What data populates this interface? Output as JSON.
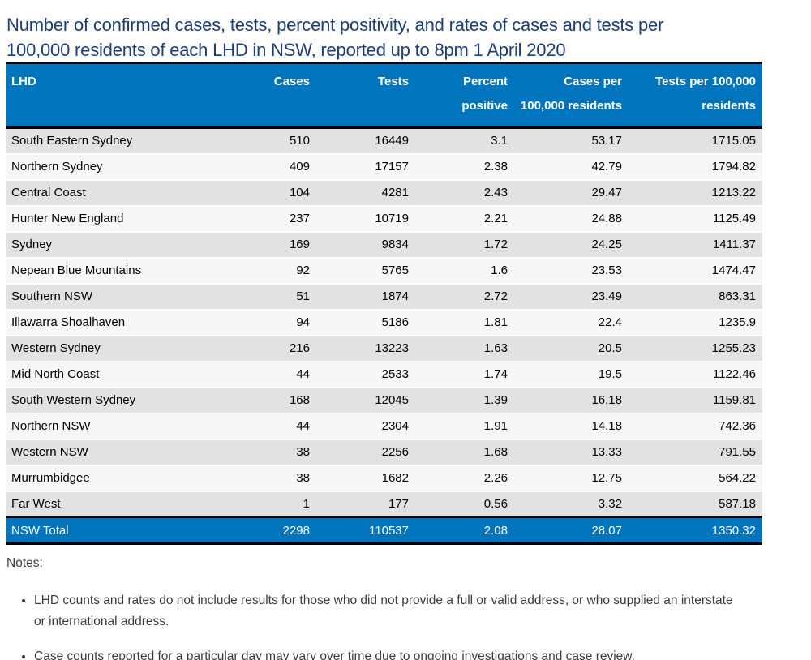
{
  "title": "Number of confirmed cases, tests, percent positivity, and rates of cases and tests per\n100,000 residents of each LHD in NSW, reported up to 8pm 1 April 2020",
  "colors": {
    "title_text": "#1E3D78",
    "header_bg": "#0074BD",
    "header_text": "#FFFFFF",
    "total_row_bg": "#0074BD",
    "total_row_text": "#FFFFFF",
    "row_shaded_bg": "#E2E2E2",
    "row_plain_bg": "#F7F7F7",
    "table_border": "#000000",
    "notes_text": "#3B3B3B"
  },
  "table": {
    "header_labels": [
      "LHD",
      "Cases",
      "Tests",
      "Percent\npositive",
      "Cases per\n100,000 residents",
      "Tests per 100,000\nresidents"
    ],
    "rows": [
      [
        "South Eastern Sydney",
        "510",
        "16449",
        "3.1",
        "53.17",
        "1715.05"
      ],
      [
        "Northern Sydney",
        "409",
        "17157",
        "2.38",
        "42.79",
        "1794.82"
      ],
      [
        "Central Coast",
        "104",
        "4281",
        "2.43",
        "29.47",
        "1213.22"
      ],
      [
        "Hunter New England",
        "237",
        "10719",
        "2.21",
        "24.88",
        "1125.49"
      ],
      [
        "Sydney",
        "169",
        "9834",
        "1.72",
        "24.25",
        "1411.37"
      ],
      [
        "Nepean Blue Mountains",
        "92",
        "5765",
        "1.6",
        "23.53",
        "1474.47"
      ],
      [
        "Southern NSW",
        "51",
        "1874",
        "2.72",
        "23.49",
        "863.31"
      ],
      [
        "Illawarra Shoalhaven",
        "94",
        "5186",
        "1.81",
        "22.4",
        "1235.9"
      ],
      [
        "Western Sydney",
        "216",
        "13223",
        "1.63",
        "20.5",
        "1255.23"
      ],
      [
        "Mid North Coast",
        "44",
        "2533",
        "1.74",
        "19.5",
        "1122.46"
      ],
      [
        "South Western Sydney",
        "168",
        "12045",
        "1.39",
        "16.18",
        "1159.81"
      ],
      [
        "Northern NSW",
        "44",
        "2304",
        "1.91",
        "14.18",
        "742.36"
      ],
      [
        "Western NSW",
        "38",
        "2256",
        "1.68",
        "13.33",
        "791.55"
      ],
      [
        "Murrumbidgee",
        "38",
        "1682",
        "2.26",
        "12.75",
        "564.22"
      ],
      [
        "Far West",
        "1",
        "177",
        "0.56",
        "3.32",
        "587.18"
      ]
    ],
    "total": [
      "NSW Total",
      "2298",
      "110537",
      "2.08",
      "28.07",
      "1350.32"
    ]
  },
  "notes": {
    "heading": "Notes:",
    "items": [
      "LHD counts and rates do not include results for those who did not provide a full or valid address, or who supplied an interstate or international address.",
      "Case counts reported for a particular day may vary over time due to ongoing investigations and case review."
    ]
  },
  "chart_data": {
    "type": "table",
    "title": "Number of confirmed cases, tests, percent positivity, and rates of cases and tests per 100,000 residents of each LHD in NSW, reported up to 8pm 1 April 2020",
    "columns": [
      "LHD",
      "Cases",
      "Tests",
      "Percent positive",
      "Cases per 100,000 residents",
      "Tests per 100,000 residents"
    ],
    "rows": [
      [
        "South Eastern Sydney",
        510,
        16449,
        3.1,
        53.17,
        1715.05
      ],
      [
        "Northern Sydney",
        409,
        17157,
        2.38,
        42.79,
        1794.82
      ],
      [
        "Central Coast",
        104,
        4281,
        2.43,
        29.47,
        1213.22
      ],
      [
        "Hunter New England",
        237,
        10719,
        2.21,
        24.88,
        1125.49
      ],
      [
        "Sydney",
        169,
        9834,
        1.72,
        24.25,
        1411.37
      ],
      [
        "Nepean Blue Mountains",
        92,
        5765,
        1.6,
        23.53,
        1474.47
      ],
      [
        "Southern NSW",
        51,
        1874,
        2.72,
        23.49,
        863.31
      ],
      [
        "Illawarra Shoalhaven",
        94,
        5186,
        1.81,
        22.4,
        1235.9
      ],
      [
        "Western Sydney",
        216,
        13223,
        1.63,
        20.5,
        1255.23
      ],
      [
        "Mid North Coast",
        44,
        2533,
        1.74,
        19.5,
        1122.46
      ],
      [
        "South Western Sydney",
        168,
        12045,
        1.39,
        16.18,
        1159.81
      ],
      [
        "Northern NSW",
        44,
        2304,
        1.91,
        14.18,
        742.36
      ],
      [
        "Western NSW",
        38,
        2256,
        1.68,
        13.33,
        791.55
      ],
      [
        "Murrumbidgee",
        38,
        1682,
        2.26,
        12.75,
        564.22
      ],
      [
        "Far West",
        1,
        177,
        0.56,
        3.32,
        587.18
      ]
    ],
    "total_row": [
      "NSW Total",
      2298,
      110537,
      2.08,
      28.07,
      1350.32
    ]
  }
}
